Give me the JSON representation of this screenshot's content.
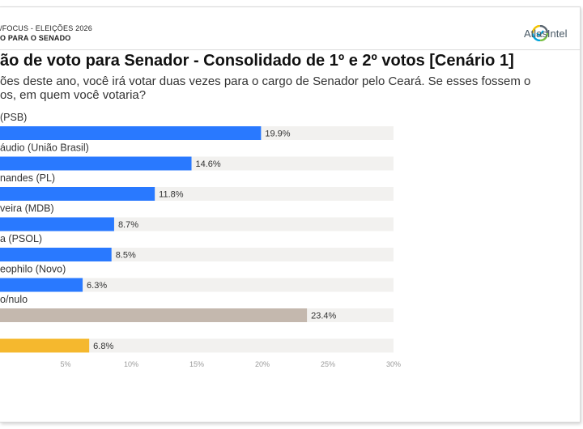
{
  "header": {
    "line1": "/FOCUS - ELEIÇÕES 2026",
    "line2": "O PARA O SENADO",
    "brand": "AtlasIntel",
    "brand_colors": {
      "yellow": "#f2c200",
      "blue": "#00a3d9",
      "green": "#7ac143",
      "gray": "#5b6670"
    }
  },
  "title": "ão de voto para Senador - Consolidado de 1º e 2º votos [Cenário 1]",
  "subtitle_line1": "ões deste ano, você irá votar duas vezes para o cargo de Senador pelo Ceará. Se esses fossem o",
  "subtitle_line2": "os, em quem você votaria?",
  "chart_data": {
    "type": "bar",
    "orientation": "horizontal",
    "categories": [
      "(PSB)",
      "áudio (União Brasil)",
      "nandes (PL)",
      "veira (MDB)",
      "a (PSOL)",
      "eophilo (Novo)",
      "o/nulo",
      ""
    ],
    "values": [
      19.9,
      14.6,
      11.8,
      8.7,
      8.5,
      6.3,
      23.4,
      6.8
    ],
    "value_labels": [
      "19.9%",
      "14.6%",
      "11.8%",
      "8.7%",
      "8.5%",
      "6.3%",
      "23.4%",
      "6.8%"
    ],
    "bar_colors": [
      "#2979ff",
      "#2979ff",
      "#2979ff",
      "#2979ff",
      "#2979ff",
      "#2979ff",
      "#c4b8ae",
      "#f5b82e"
    ],
    "track_color": "#f2f1ef",
    "xlim": [
      0,
      30
    ],
    "xticks": [
      5,
      10,
      15,
      20,
      25,
      30
    ],
    "xtick_labels": [
      "5%",
      "10%",
      "15%",
      "20%",
      "25%",
      "30%"
    ],
    "grid": false,
    "legend": "none"
  }
}
